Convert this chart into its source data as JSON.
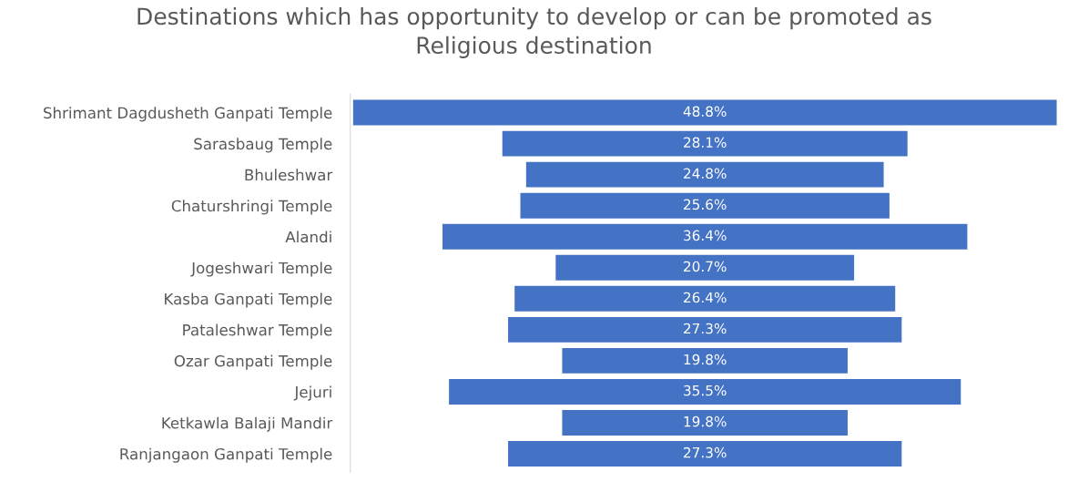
{
  "chart_data": {
    "type": "other",
    "title": "Destinations which has opportunity to develop or can be promoted as\nReligious destination",
    "categories": [
      "Shrimant Dagdusheth Ganpati Temple",
      "Sarasbaug Temple",
      "Bhuleshwar",
      "Chaturshringi Temple",
      "Alandi",
      "Jogeshwari Temple",
      "Kasba Ganpati Temple",
      "Pataleshwar Temple",
      "Ozar Ganpati Temple",
      "Jejuri",
      "Ketkawla Balaji Mandir",
      "Ranjangaon Ganpati Temple"
    ],
    "values": [
      48.8,
      28.1,
      24.8,
      25.6,
      36.4,
      20.7,
      26.4,
      27.3,
      19.8,
      35.5,
      19.8,
      27.3
    ],
    "value_labels": [
      "48.8%",
      "28.1%",
      "24.8%",
      "25.6%",
      "36.4%",
      "20.7%",
      "26.4%",
      "27.3%",
      "19.8%",
      "35.5%",
      "19.8%",
      "27.3%"
    ],
    "color": "#4472c4"
  }
}
